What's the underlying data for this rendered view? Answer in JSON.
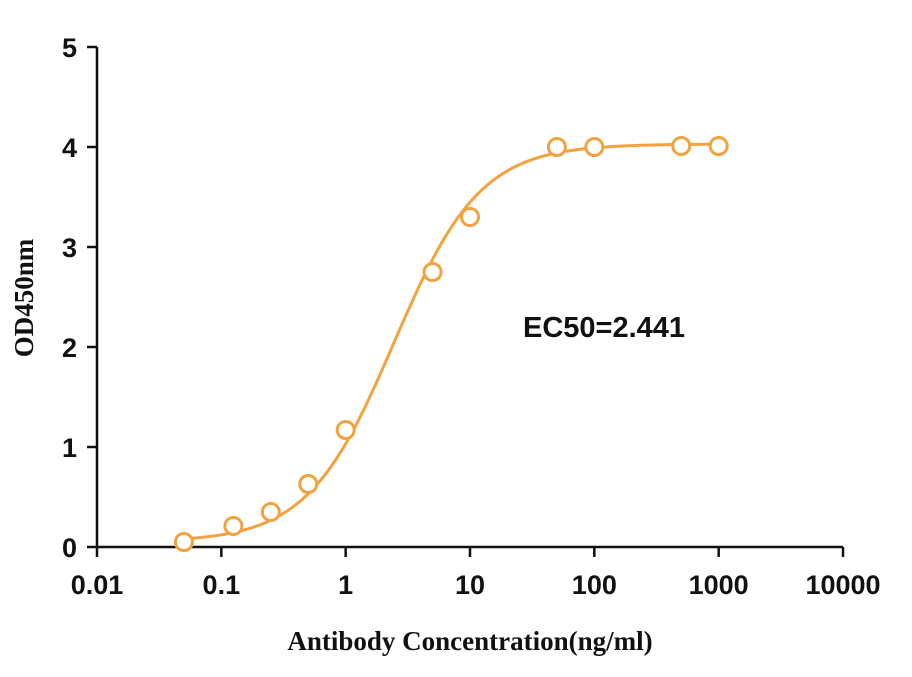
{
  "chart_data": {
    "type": "scatter",
    "x_scale": "log",
    "xlim": [
      0.01,
      10000
    ],
    "ylim": [
      0,
      5
    ],
    "x_ticks": [
      "0.01",
      "0.1",
      "1",
      "10",
      "100",
      "1000",
      "10000"
    ],
    "y_ticks": [
      "0",
      "1",
      "2",
      "3",
      "4",
      "5"
    ],
    "xlabel": "Antibody Concentration(ng/ml)",
    "ylabel": "OD450nm",
    "annotation": "EC50=2.441",
    "grid": false,
    "series": [
      {
        "x": [
          0.05,
          0.125,
          0.25,
          0.5,
          1,
          5,
          10,
          50,
          100,
          500,
          1000
        ],
        "y": [
          0.05,
          0.21,
          0.35,
          0.63,
          1.17,
          2.75,
          3.3,
          4.0,
          4.0,
          4.01,
          4.01
        ],
        "color": "#f2a23e",
        "marker": "open-circle",
        "fit": "four-parameter-logistic"
      }
    ],
    "fit_params": {
      "bottom": 0.05,
      "top": 4.03,
      "ec50": 2.441,
      "hill": 1.25
    }
  }
}
